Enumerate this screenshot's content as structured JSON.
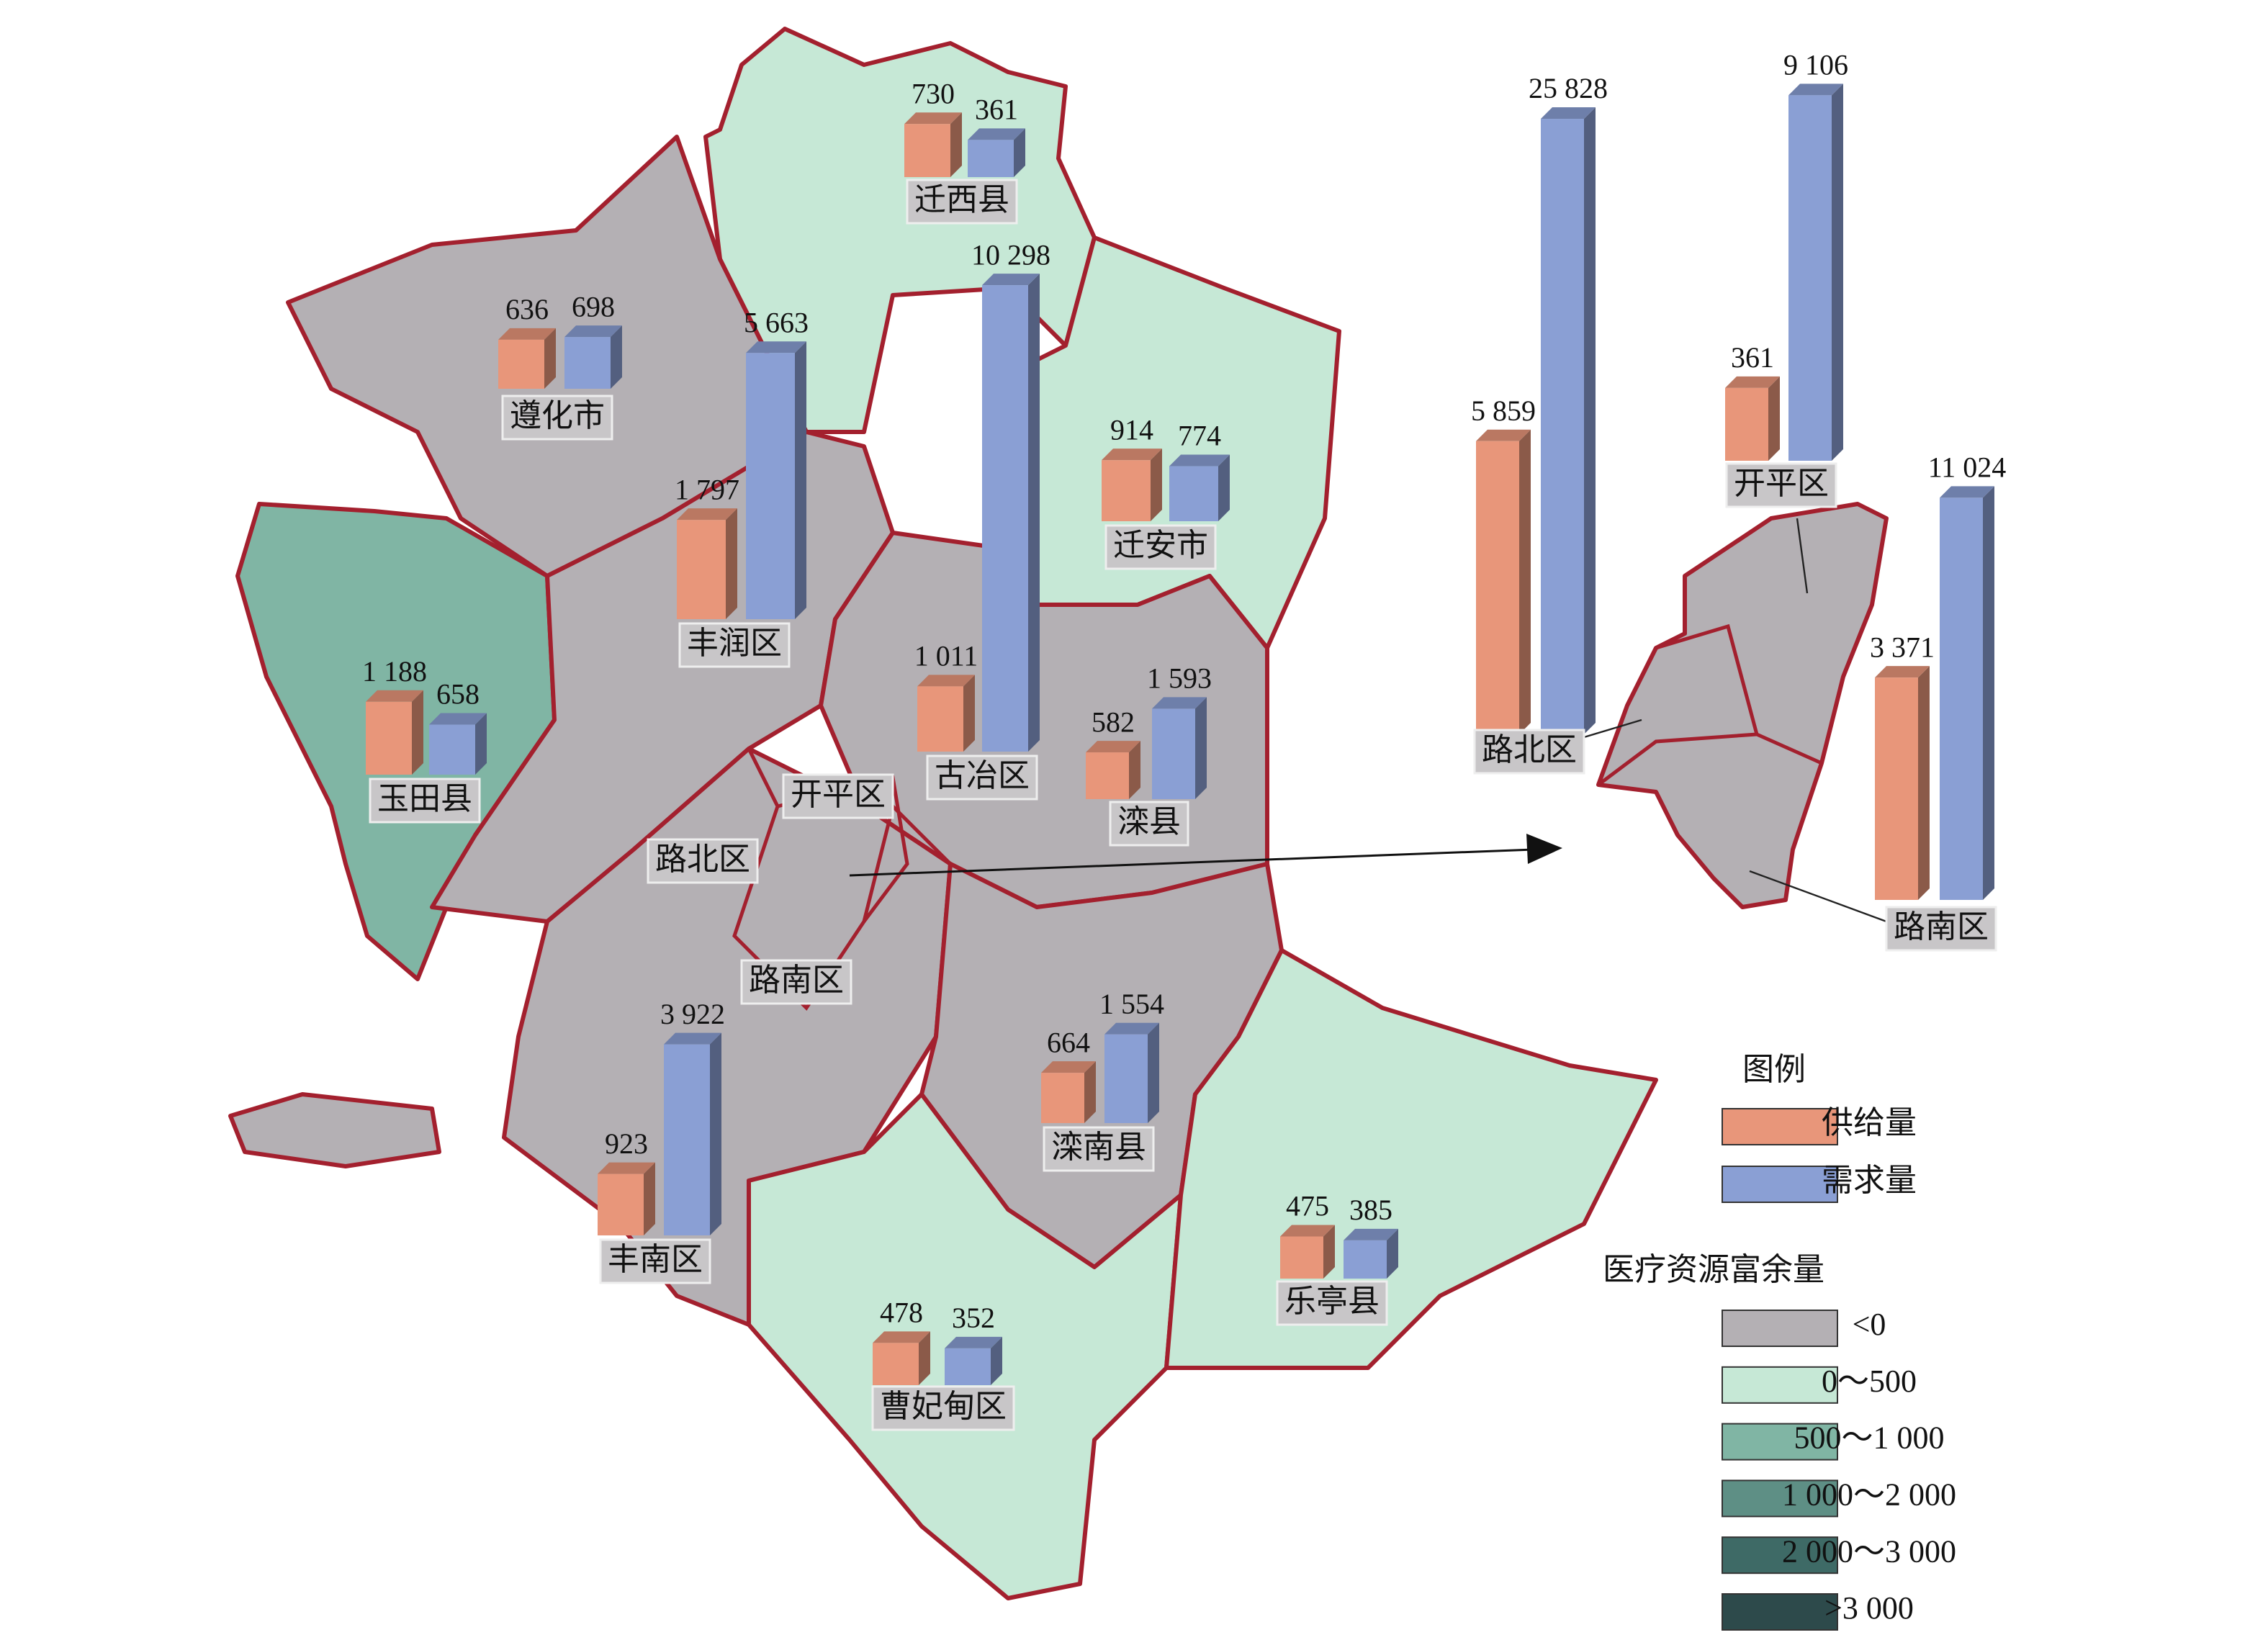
{
  "map": {
    "regions": [
      {
        "name": "迁西县",
        "supply": 730,
        "demand": 361,
        "supply_label": "730",
        "demand_label": "361"
      },
      {
        "name": "遵化市",
        "supply": 636,
        "demand": 698,
        "supply_label": "636",
        "demand_label": "698"
      },
      {
        "name": "丰润区",
        "supply": 1797,
        "demand": 5663,
        "supply_label": "1 797",
        "demand_label": "5 663"
      },
      {
        "name": "玉田县",
        "supply": 1188,
        "demand": 658,
        "supply_label": "1 188",
        "demand_label": "658"
      },
      {
        "name": "迁安市",
        "supply": 914,
        "demand": 774,
        "supply_label": "914",
        "demand_label": "774"
      },
      {
        "name": "古冶区",
        "supply": 1011,
        "demand": 10298,
        "supply_label": "1 011",
        "demand_label": "10 298"
      },
      {
        "name": "滦县",
        "supply": 582,
        "demand": 1593,
        "supply_label": "582",
        "demand_label": "1 593"
      },
      {
        "name": "丰南区",
        "supply": 923,
        "demand": 3922,
        "supply_label": "923",
        "demand_label": "3 922"
      },
      {
        "name": "滦南县",
        "supply": 664,
        "demand": 1554,
        "supply_label": "664",
        "demand_label": "1 554"
      },
      {
        "name": "曹妃甸区",
        "supply": 478,
        "demand": 352,
        "supply_label": "478",
        "demand_label": "352"
      },
      {
        "name": "乐亭县",
        "supply": 475,
        "demand": 385,
        "supply_label": "475",
        "demand_label": "385"
      }
    ],
    "map_labels": [
      "开平区",
      "路北区",
      "路南区"
    ],
    "inset": [
      {
        "name": "路北区",
        "supply": 5859,
        "demand": 25828,
        "supply_label": "5 859",
        "demand_label": "25 828"
      },
      {
        "name": "开平区",
        "supply": 361,
        "demand": 9106,
        "supply_label": "361",
        "demand_label": "9 106"
      },
      {
        "name": "路南区",
        "supply": 3371,
        "demand": 11024,
        "supply_label": "3 371",
        "demand_label": "11 024"
      }
    ],
    "legend": {
      "title": "图例",
      "series": [
        {
          "name": "供给量",
          "color": "#e8967a"
        },
        {
          "name": "需求量",
          "color": "#8a9fd4"
        }
      ],
      "fill_title": "医疗资源富余量",
      "classes": [
        {
          "label": "<0",
          "color": "#b4b0b4"
        },
        {
          "label": "0～500",
          "color": "#c6e8d6"
        },
        {
          "label": "500～1 000",
          "color": "#80b5a4"
        },
        {
          "label": "1 000～2 000",
          "color": "#5e8f85"
        },
        {
          "label": "2 000～3 000",
          "color": "#3e6a66"
        },
        {
          "label": ">3 000",
          "color": "#2d4a4b"
        }
      ]
    }
  }
}
